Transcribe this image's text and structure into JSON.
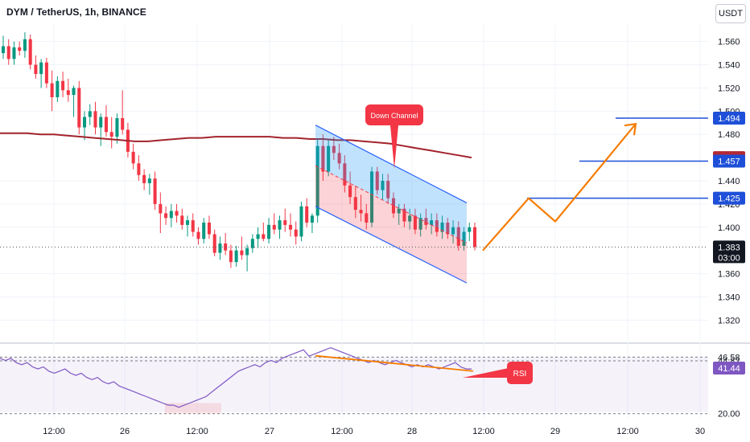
{
  "header": {
    "title": "DYM / TetherUS, 1h, BINANCE",
    "currency": "USDT"
  },
  "chart_data": {
    "type": "candlestick",
    "symbol": "DYM / TetherUS",
    "interval": "1h",
    "exchange": "BINANCE",
    "price_axis": {
      "ticks": [
        "1.560",
        "1.540",
        "1.520",
        "1.500",
        "1.480",
        "1.440",
        "1.420",
        "1.400",
        "1.360",
        "1.340",
        "1.320"
      ],
      "range": [
        1.305,
        1.575
      ]
    },
    "time_axis": {
      "ticks": [
        "12:00",
        "26",
        "12:00",
        "27",
        "12:00",
        "28",
        "12:00",
        "29",
        "12:00",
        "30"
      ]
    },
    "price_labels": [
      {
        "value": "1.494",
        "color": "#1e4fd8"
      },
      {
        "value": "1.460",
        "color": "#b22833"
      },
      {
        "value": "1.457",
        "color": "#1e4fd8"
      },
      {
        "value": "1.425",
        "color": "#1e4fd8"
      }
    ],
    "current_price": {
      "value": "1.383",
      "countdown": "03:00"
    },
    "annotations": {
      "down_channel": "Down Channel",
      "rsi": "RSI"
    },
    "candles": [
      [
        1.55,
        1.565,
        1.545,
        1.556
      ],
      [
        1.556,
        1.562,
        1.54,
        1.545
      ],
      [
        1.545,
        1.56,
        1.54,
        1.555
      ],
      [
        1.555,
        1.56,
        1.548,
        1.552
      ],
      [
        1.552,
        1.568,
        1.546,
        1.562
      ],
      [
        1.562,
        1.566,
        1.536,
        1.54
      ],
      [
        1.54,
        1.548,
        1.528,
        1.532
      ],
      [
        1.532,
        1.545,
        1.52,
        1.542
      ],
      [
        1.542,
        1.546,
        1.52,
        1.524
      ],
      [
        1.524,
        1.535,
        1.5,
        1.512
      ],
      [
        1.512,
        1.53,
        1.508,
        1.526
      ],
      [
        1.526,
        1.534,
        1.512,
        1.518
      ],
      [
        1.518,
        1.528,
        1.508,
        1.514
      ],
      [
        1.514,
        1.522,
        1.495,
        1.52
      ],
      [
        1.52,
        1.526,
        1.48,
        1.486
      ],
      [
        1.486,
        1.5,
        1.475,
        1.495
      ],
      [
        1.495,
        1.506,
        1.488,
        1.5
      ],
      [
        1.5,
        1.508,
        1.48,
        1.486
      ],
      [
        1.486,
        1.498,
        1.47,
        1.495
      ],
      [
        1.495,
        1.505,
        1.478,
        1.482
      ],
      [
        1.482,
        1.495,
        1.468,
        1.478
      ],
      [
        1.478,
        1.498,
        1.472,
        1.494
      ],
      [
        1.494,
        1.518,
        1.48,
        1.484
      ],
      [
        1.484,
        1.49,
        1.46,
        1.465
      ],
      [
        1.465,
        1.472,
        1.45,
        1.455
      ],
      [
        1.455,
        1.462,
        1.44,
        1.445
      ],
      [
        1.445,
        1.45,
        1.432,
        1.438
      ],
      [
        1.438,
        1.446,
        1.428,
        1.442
      ],
      [
        1.442,
        1.448,
        1.415,
        1.42
      ],
      [
        1.42,
        1.43,
        1.395,
        1.412
      ],
      [
        1.412,
        1.418,
        1.402,
        1.408
      ],
      [
        1.408,
        1.42,
        1.4,
        1.414
      ],
      [
        1.414,
        1.42,
        1.404,
        1.41
      ],
      [
        1.41,
        1.416,
        1.398,
        1.402
      ],
      [
        1.402,
        1.41,
        1.392,
        1.406
      ],
      [
        1.406,
        1.412,
        1.392,
        1.396
      ],
      [
        1.396,
        1.4,
        1.385,
        1.39
      ],
      [
        1.39,
        1.408,
        1.386,
        1.404
      ],
      [
        1.404,
        1.41,
        1.39,
        1.394
      ],
      [
        1.394,
        1.398,
        1.375,
        1.378
      ],
      [
        1.378,
        1.392,
        1.372,
        1.386
      ],
      [
        1.386,
        1.395,
        1.376,
        1.38
      ],
      [
        1.38,
        1.385,
        1.365,
        1.37
      ],
      [
        1.37,
        1.384,
        1.366,
        1.38
      ],
      [
        1.38,
        1.392,
        1.372,
        1.376
      ],
      [
        1.376,
        1.385,
        1.362,
        1.382
      ],
      [
        1.382,
        1.394,
        1.378,
        1.39
      ],
      [
        1.39,
        1.4,
        1.382,
        1.394
      ],
      [
        1.394,
        1.404,
        1.388,
        1.39
      ],
      [
        1.39,
        1.408,
        1.386,
        1.402
      ],
      [
        1.402,
        1.412,
        1.394,
        1.398
      ],
      [
        1.398,
        1.41,
        1.39,
        1.406
      ],
      [
        1.406,
        1.416,
        1.396,
        1.402
      ],
      [
        1.402,
        1.412,
        1.392,
        1.398
      ],
      [
        1.398,
        1.405,
        1.385,
        1.392
      ],
      [
        1.392,
        1.422,
        1.388,
        1.418
      ],
      [
        1.418,
        1.425,
        1.4,
        1.404
      ],
      [
        1.404,
        1.412,
        1.395,
        1.41
      ],
      [
        1.41,
        1.476,
        1.404,
        1.47
      ],
      [
        1.47,
        1.48,
        1.44,
        1.448
      ],
      [
        1.448,
        1.475,
        1.444,
        1.47
      ],
      [
        1.47,
        1.478,
        1.458,
        1.464
      ],
      [
        1.464,
        1.472,
        1.45,
        1.455
      ],
      [
        1.455,
        1.462,
        1.43,
        1.436
      ],
      [
        1.436,
        1.448,
        1.42,
        1.426
      ],
      [
        1.426,
        1.436,
        1.408,
        1.415
      ],
      [
        1.415,
        1.428,
        1.405,
        1.412
      ],
      [
        1.412,
        1.42,
        1.398,
        1.404
      ],
      [
        1.404,
        1.452,
        1.4,
        1.448
      ],
      [
        1.448,
        1.452,
        1.428,
        1.432
      ],
      [
        1.432,
        1.446,
        1.424,
        1.44
      ],
      [
        1.44,
        1.446,
        1.42,
        1.425
      ],
      [
        1.425,
        1.43,
        1.408,
        1.412
      ],
      [
        1.412,
        1.42,
        1.402,
        1.416
      ],
      [
        1.416,
        1.42,
        1.4,
        1.405
      ],
      [
        1.405,
        1.416,
        1.398,
        1.41
      ],
      [
        1.41,
        1.416,
        1.394,
        1.398
      ],
      [
        1.398,
        1.412,
        1.392,
        1.408
      ],
      [
        1.408,
        1.416,
        1.398,
        1.402
      ],
      [
        1.402,
        1.412,
        1.394,
        1.406
      ],
      [
        1.406,
        1.412,
        1.392,
        1.396
      ],
      [
        1.396,
        1.41,
        1.39,
        1.404
      ],
      [
        1.404,
        1.408,
        1.39,
        1.394
      ],
      [
        1.394,
        1.406,
        1.386,
        1.4
      ],
      [
        1.4,
        1.405,
        1.38,
        1.384
      ],
      [
        1.384,
        1.4,
        1.38,
        1.396
      ],
      [
        1.396,
        1.404,
        1.388,
        1.4
      ],
      [
        1.4,
        1.404,
        1.38,
        1.383
      ]
    ],
    "moving_average": [
      1.481,
      1.481,
      1.481,
      1.48,
      1.48,
      1.479,
      1.478,
      1.477,
      1.476,
      1.475,
      1.474,
      1.474,
      1.475,
      1.476,
      1.477,
      1.477,
      1.478,
      1.478,
      1.478,
      1.478,
      1.478,
      1.477,
      1.477,
      1.476,
      1.476,
      1.475,
      1.475,
      1.474,
      1.473,
      1.472,
      1.47,
      1.468,
      1.466,
      1.464,
      1.462,
      1.46
    ],
    "channel": {
      "upper": [
        1.488,
        1.421
      ],
      "lower": [
        1.418,
        1.352
      ]
    },
    "projection": [
      1.38,
      1.425,
      1.405,
      1.489
    ],
    "rsi": {
      "ticks": [
        "46.58",
        "44.82",
        "20.00"
      ],
      "current": "41.44",
      "values": [
        46,
        45,
        46,
        44,
        43,
        44,
        42,
        41,
        42,
        40,
        39,
        40,
        41,
        39,
        38,
        39,
        37,
        36,
        37,
        35,
        34,
        35,
        33,
        32,
        31,
        30,
        29,
        28,
        27,
        26,
        25,
        24,
        24,
        23,
        24,
        25,
        26,
        27,
        28,
        30,
        32,
        34,
        36,
        38,
        40,
        41,
        42,
        43,
        42,
        44,
        45,
        44,
        46,
        47,
        48,
        49,
        50,
        47,
        48,
        49,
        50,
        51,
        50,
        49,
        48,
        47,
        46,
        45,
        44,
        45,
        44,
        43,
        44,
        45,
        44,
        43,
        42,
        43,
        42,
        43,
        42,
        41,
        42,
        43,
        44,
        42,
        41,
        41
      ],
      "trendline": [
        47.2,
        40.0
      ]
    }
  }
}
